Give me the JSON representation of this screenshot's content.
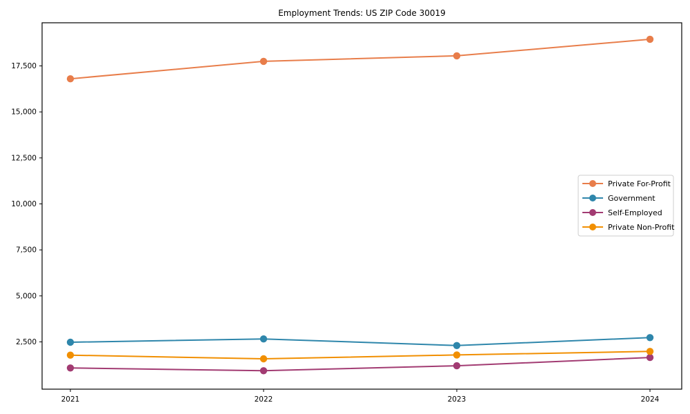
{
  "chart_data": {
    "type": "line",
    "title": "Employment Trends: US ZIP Code 30019",
    "xlabel": "",
    "ylabel": "",
    "categories": [
      "2021",
      "2022",
      "2023",
      "2024"
    ],
    "series": [
      {
        "name": "Private For-Profit",
        "color": "#E87D4A",
        "values": [
          16800,
          17750,
          18050,
          18950
        ]
      },
      {
        "name": "Government",
        "color": "#2E86AB",
        "values": [
          2480,
          2660,
          2300,
          2730
        ]
      },
      {
        "name": "Self-Employed",
        "color": "#A23B72",
        "values": [
          1080,
          930,
          1200,
          1650
        ]
      },
      {
        "name": "Private Non-Profit",
        "color": "#F18F01",
        "values": [
          1780,
          1580,
          1790,
          1980
        ]
      }
    ],
    "yticks": [
      {
        "value": 2500,
        "label": "2,500"
      },
      {
        "value": 5000,
        "label": "5,000"
      },
      {
        "value": 7500,
        "label": "7,500"
      },
      {
        "value": 10000,
        "label": "10,000"
      },
      {
        "value": 12500,
        "label": "12,500"
      },
      {
        "value": 15000,
        "label": "15,000"
      },
      {
        "value": 17500,
        "label": "17,500"
      }
    ],
    "ylim": [
      -70,
      19845
    ],
    "grid": false,
    "legend_position": "center-right",
    "axis_color": "#000000",
    "background_color": "#ffffff"
  }
}
